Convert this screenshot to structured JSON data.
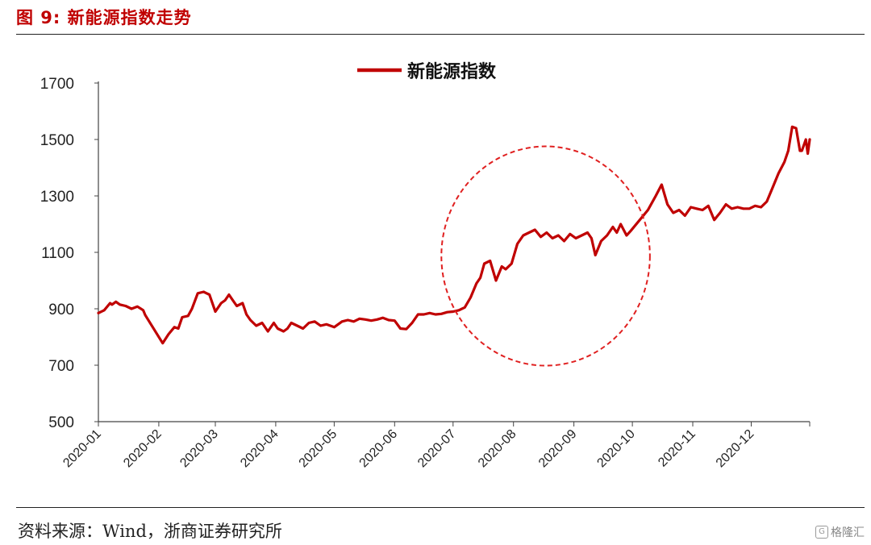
{
  "figure": {
    "title": "图 9: 新能源指数走势",
    "source": "资料来源：Wind，浙商证券研究所",
    "watermark": "格隆汇"
  },
  "colors": {
    "line": "#c00000",
    "title": "#c00000",
    "axis": "#444444",
    "circle": "#e02020"
  },
  "chart_data": {
    "type": "line",
    "title": "",
    "xlabel": "",
    "ylabel": "",
    "ylim": [
      500,
      1700
    ],
    "yticks": [
      500,
      700,
      900,
      1100,
      1300,
      1500,
      1700
    ],
    "xlim": [
      "2020-01-01",
      "2020-12-31"
    ],
    "xticks": [
      "2020-01",
      "2020-02",
      "2020-03",
      "2020-04",
      "2020-05",
      "2020-06",
      "2020-07",
      "2020-08",
      "2020-09",
      "2020-10",
      "2020-11",
      "2020-12"
    ],
    "grid": false,
    "legend": {
      "position": "top-center"
    },
    "annotation": {
      "shape": "dashed-circle",
      "range": [
        "2020-06-25",
        "2020-10-10"
      ]
    },
    "series": [
      {
        "name": "新能源指数",
        "x": [
          "2020-01-01",
          "2020-01-04",
          "2020-01-07",
          "2020-01-08",
          "2020-01-10",
          "2020-01-12",
          "2020-01-15",
          "2020-01-18",
          "2020-01-21",
          "2020-01-24",
          "2020-01-25",
          "2020-02-03",
          "2020-02-06",
          "2020-02-09",
          "2020-02-11",
          "2020-02-13",
          "2020-02-16",
          "2020-02-18",
          "2020-02-21",
          "2020-02-24",
          "2020-02-27",
          "2020-03-01",
          "2020-03-04",
          "2020-03-06",
          "2020-03-08",
          "2020-03-10",
          "2020-03-12",
          "2020-03-15",
          "2020-03-17",
          "2020-03-19",
          "2020-03-22",
          "2020-03-25",
          "2020-03-28",
          "2020-03-31",
          "2020-04-02",
          "2020-04-05",
          "2020-04-07",
          "2020-04-09",
          "2020-04-12",
          "2020-04-15",
          "2020-04-18",
          "2020-04-21",
          "2020-04-24",
          "2020-04-27",
          "2020-05-01",
          "2020-05-05",
          "2020-05-08",
          "2020-05-11",
          "2020-05-14",
          "2020-05-17",
          "2020-05-20",
          "2020-05-23",
          "2020-05-26",
          "2020-05-29",
          "2020-06-01",
          "2020-06-04",
          "2020-06-07",
          "2020-06-10",
          "2020-06-13",
          "2020-06-16",
          "2020-06-19",
          "2020-06-22",
          "2020-06-25",
          "2020-06-28",
          "2020-07-01",
          "2020-07-04",
          "2020-07-07",
          "2020-07-10",
          "2020-07-13",
          "2020-07-15",
          "2020-07-17",
          "2020-07-20",
          "2020-07-23",
          "2020-07-26",
          "2020-07-28",
          "2020-07-31",
          "2020-08-03",
          "2020-08-06",
          "2020-08-09",
          "2020-08-12",
          "2020-08-15",
          "2020-08-18",
          "2020-08-21",
          "2020-08-24",
          "2020-08-27",
          "2020-08-30",
          "2020-09-02",
          "2020-09-05",
          "2020-09-08",
          "2020-09-10",
          "2020-09-12",
          "2020-09-15",
          "2020-09-18",
          "2020-09-21",
          "2020-09-23",
          "2020-09-25",
          "2020-09-28",
          "2020-09-30",
          "2020-10-09",
          "2020-10-13",
          "2020-10-16",
          "2020-10-19",
          "2020-10-22",
          "2020-10-25",
          "2020-10-28",
          "2020-10-31",
          "2020-11-03",
          "2020-11-06",
          "2020-11-09",
          "2020-11-12",
          "2020-11-15",
          "2020-11-18",
          "2020-11-21",
          "2020-11-24",
          "2020-11-27",
          "2020-11-30",
          "2020-12-03",
          "2020-12-06",
          "2020-12-09",
          "2020-12-12",
          "2020-12-15",
          "2020-12-18",
          "2020-12-20",
          "2020-12-22",
          "2020-12-24",
          "2020-12-26",
          "2020-12-27",
          "2020-12-29",
          "2020-12-30",
          "2020-12-31"
        ],
        "values": [
          885,
          895,
          920,
          915,
          925,
          915,
          910,
          900,
          908,
          895,
          878,
          778,
          810,
          835,
          830,
          870,
          875,
          900,
          955,
          960,
          950,
          890,
          920,
          930,
          950,
          930,
          910,
          920,
          880,
          860,
          840,
          850,
          820,
          850,
          830,
          820,
          830,
          850,
          840,
          830,
          850,
          855,
          840,
          845,
          835,
          855,
          860,
          855,
          865,
          862,
          858,
          862,
          868,
          860,
          858,
          830,
          828,
          850,
          880,
          880,
          885,
          880,
          882,
          888,
          890,
          895,
          905,
          940,
          990,
          1010,
          1060,
          1070,
          1000,
          1050,
          1040,
          1060,
          1130,
          1160,
          1170,
          1180,
          1155,
          1170,
          1150,
          1160,
          1140,
          1165,
          1150,
          1160,
          1170,
          1150,
          1090,
          1140,
          1160,
          1190,
          1170,
          1200,
          1160,
          1175,
          1250,
          1300,
          1340,
          1270,
          1240,
          1250,
          1230,
          1260,
          1255,
          1250,
          1265,
          1215,
          1240,
          1270,
          1255,
          1260,
          1255,
          1255,
          1265,
          1260,
          1280,
          1330,
          1380,
          1420,
          1460,
          1545,
          1540,
          1460,
          1460,
          1500,
          1450,
          1500
        ]
      }
    ]
  }
}
